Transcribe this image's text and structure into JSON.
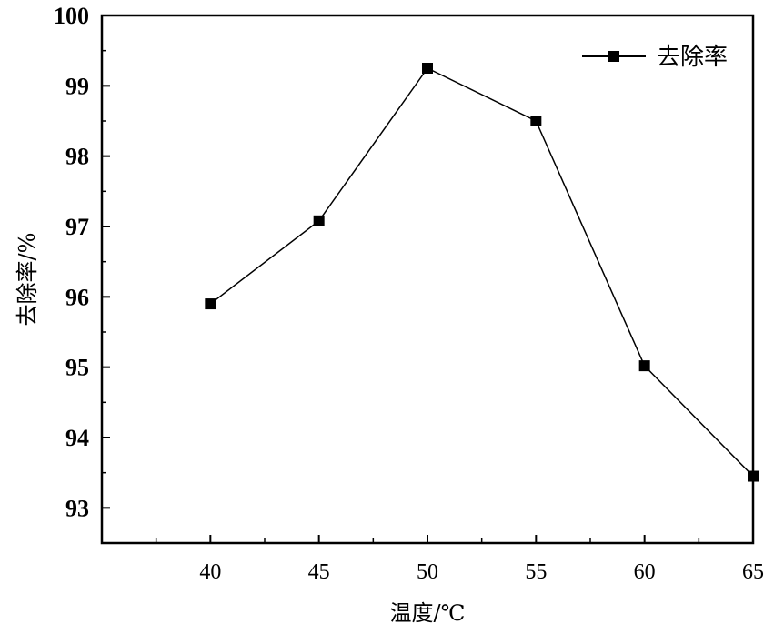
{
  "chart_data": {
    "type": "line",
    "xlabel": "温度/℃",
    "ylabel": "去除率/%",
    "x": [
      40,
      45,
      50,
      55,
      60,
      65
    ],
    "xticks": [
      "40",
      "45",
      "50",
      "55",
      "60",
      "65"
    ],
    "xlim": [
      35,
      65
    ],
    "ylim": [
      92.5,
      100
    ],
    "yticks": [
      "93",
      "94",
      "95",
      "96",
      "97",
      "98",
      "99",
      "100"
    ],
    "grid": false,
    "legend_position": "top-right",
    "series": [
      {
        "name": "去除率",
        "color": "#000000",
        "marker": "square",
        "values": [
          95.9,
          97.08,
          99.25,
          98.5,
          95.02,
          93.45
        ]
      }
    ]
  }
}
